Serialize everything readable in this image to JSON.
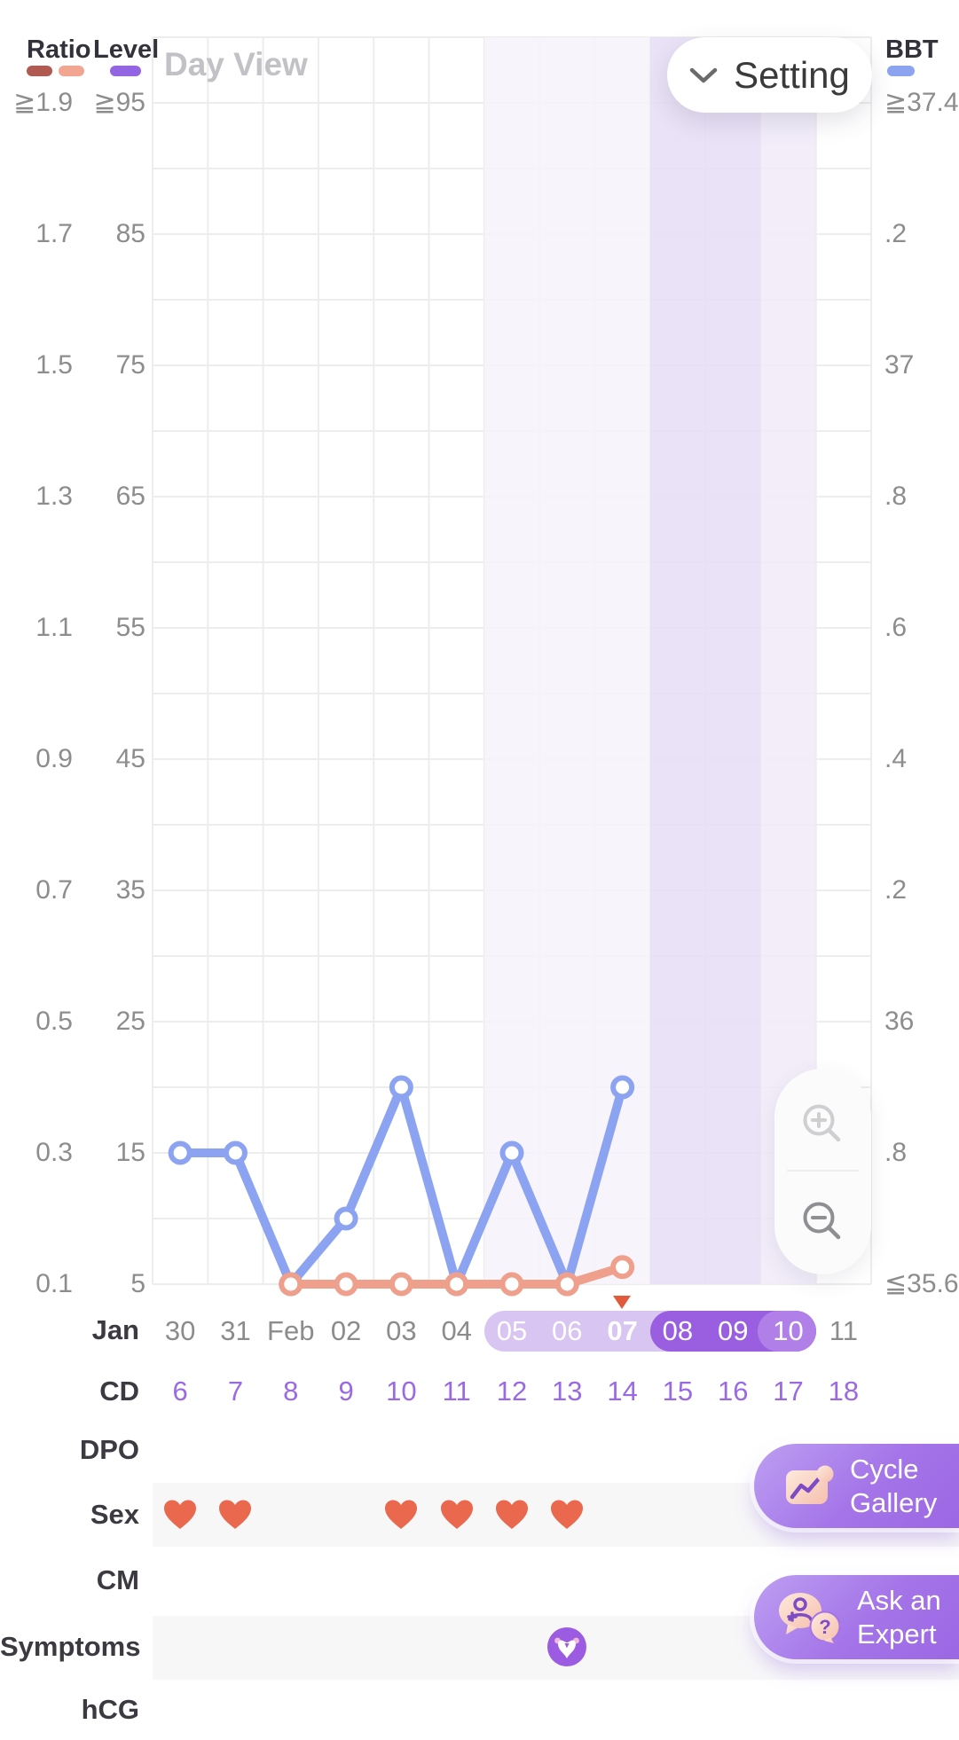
{
  "header": {
    "view_label": "Day View",
    "setting_button": {
      "label": "Setting",
      "icon": "chevron-down"
    },
    "legend": {
      "ratio_label": "Ratio",
      "level_label": "Level",
      "bbt_label": "BBT",
      "ratio_pill_colors": [
        "#b05a52",
        "#f2a692"
      ],
      "level_pill_color": "#9465e2",
      "bbt_pill_color": "#8ba3f1"
    }
  },
  "axes": {
    "ratio_ticks": [
      "≧1.9",
      "1.7",
      "1.5",
      "1.3",
      "1.1",
      "0.9",
      "0.7",
      "0.5",
      "0.3",
      "0.1"
    ],
    "level_ticks": [
      "≧95",
      "85",
      "75",
      "65",
      "55",
      "45",
      "35",
      "25",
      "15",
      "5"
    ],
    "bbt_ticks": [
      "≧37.4",
      ".2",
      "37",
      ".8",
      ".6",
      ".4",
      ".2",
      "36",
      ".8",
      "≦35.6"
    ]
  },
  "chart_data": {
    "type": "line",
    "month_label": "Jan",
    "x_dates": [
      "30",
      "31",
      "Feb",
      "02",
      "03",
      "04",
      "05",
      "06",
      "07",
      "08",
      "09",
      "10",
      "11"
    ],
    "grid": true,
    "series": [
      {
        "name": "BBT",
        "color": "#8ba3f1",
        "day_indices": [
          0,
          1,
          2,
          3,
          4,
          5,
          6,
          7,
          8
        ],
        "bbt_values": [
          35.8,
          35.8,
          35.6,
          35.7,
          35.9,
          35.6,
          35.8,
          35.6,
          35.9
        ],
        "level_equiv": [
          15,
          15,
          5,
          10,
          20,
          5,
          15,
          5,
          20
        ]
      },
      {
        "name": "Ratio",
        "color": "#efa08c",
        "day_indices": [
          2,
          3,
          4,
          5,
          6,
          7,
          8
        ],
        "ratio_values": [
          0.1,
          0.1,
          0.1,
          0.1,
          0.1,
          0.1,
          0.13
        ],
        "level_equiv": [
          5,
          5,
          5,
          5,
          5,
          5,
          6.3
        ]
      }
    ],
    "shaded_bands": [
      {
        "days": [
          "05",
          "06",
          "07"
        ],
        "day_start_index": 6,
        "day_end_index": 8,
        "color": "#f6f2fb"
      },
      {
        "days": [
          "08",
          "09"
        ],
        "day_start_index": 9,
        "day_end_index": 10,
        "color": "#e7def5"
      },
      {
        "days": [
          "10"
        ],
        "day_start_index": 11,
        "day_end_index": 11,
        "color": "#f0eaf8"
      }
    ],
    "ovulation_marker": {
      "day_index": 8,
      "date": "07",
      "color": "#e25a3c"
    },
    "day_highlight_pill": {
      "light_days": [
        "05",
        "06",
        "07"
      ],
      "dark_days": [
        "08",
        "09"
      ],
      "cap_day": "10",
      "bold_day": "07",
      "light_color": "#d9c5f2",
      "dark_color": "#9a5fe0",
      "cap_color": "#b07fe8"
    }
  },
  "rows": {
    "month": "Jan",
    "cd": "CD",
    "dpo": "DPO",
    "sex": "Sex",
    "cm": "CM",
    "symptoms": "Symptoms",
    "hcg": "hCG"
  },
  "cd_values": [
    "6",
    "7",
    "8",
    "9",
    "10",
    "11",
    "12",
    "13",
    "14",
    "15",
    "16",
    "17",
    "18"
  ],
  "sex_log": {
    "day_indices": [
      0,
      1,
      4,
      5,
      6,
      7
    ],
    "dates": [
      "30",
      "31",
      "03",
      "04",
      "05",
      "06"
    ],
    "heart_color": "#e9684e"
  },
  "symptoms_log": {
    "day_index": 7,
    "date": "06",
    "icon": "uterus-icon",
    "circle_color": "#9c5ce2"
  },
  "zoom_control": {
    "zoom_in_icon": "magnifier-plus",
    "zoom_out_icon": "magnifier-minus"
  },
  "buttons": {
    "cycle_gallery": {
      "line1": "Cycle",
      "line2": "Gallery",
      "icon": "chart-photo-icon"
    },
    "ask_expert": {
      "line1": "Ask an",
      "line2": "Expert",
      "icon": "chat-bubbles-icon"
    }
  }
}
